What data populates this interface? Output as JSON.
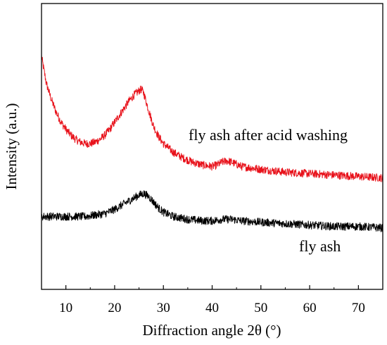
{
  "chart_data": {
    "type": "line",
    "title": "",
    "xlabel": "Diffraction angle 2θ (°)",
    "ylabel": "Intensity (a.u.)",
    "xlim": [
      5,
      75
    ],
    "x_ticks": [
      10,
      20,
      30,
      40,
      50,
      60,
      70
    ],
    "y_ticks_shown": false,
    "grid": false,
    "legend": "none",
    "annotations": [
      "fly ash after acid washing",
      "fly ash"
    ],
    "series": [
      {
        "name": "fly ash after acid washing",
        "color": "#e8121b",
        "points": [
          [
            5,
            0.815
          ],
          [
            6,
            0.72
          ],
          [
            7,
            0.665
          ],
          [
            8,
            0.62
          ],
          [
            9,
            0.585
          ],
          [
            10,
            0.56
          ],
          [
            11,
            0.54
          ],
          [
            12,
            0.525
          ],
          [
            13,
            0.515
          ],
          [
            14,
            0.51
          ],
          [
            15,
            0.51
          ],
          [
            16,
            0.515
          ],
          [
            17,
            0.525
          ],
          [
            18,
            0.54
          ],
          [
            19,
            0.56
          ],
          [
            20,
            0.585
          ],
          [
            21,
            0.61
          ],
          [
            22,
            0.635
          ],
          [
            23,
            0.66
          ],
          [
            24,
            0.68
          ],
          [
            25,
            0.695
          ],
          [
            25.5,
            0.7
          ],
          [
            26,
            0.685
          ],
          [
            27,
            0.625
          ],
          [
            28,
            0.57
          ],
          [
            29,
            0.535
          ],
          [
            30,
            0.51
          ],
          [
            32,
            0.48
          ],
          [
            34,
            0.46
          ],
          [
            36,
            0.445
          ],
          [
            38,
            0.435
          ],
          [
            40,
            0.43
          ],
          [
            41,
            0.435
          ],
          [
            42,
            0.445
          ],
          [
            43,
            0.45
          ],
          [
            44,
            0.445
          ],
          [
            46,
            0.43
          ],
          [
            48,
            0.425
          ],
          [
            50,
            0.42
          ],
          [
            55,
            0.41
          ],
          [
            60,
            0.405
          ],
          [
            65,
            0.4
          ],
          [
            70,
            0.395
          ],
          [
            75,
            0.39
          ]
        ]
      },
      {
        "name": "fly ash",
        "color": "#000000",
        "points": [
          [
            5,
            0.255
          ],
          [
            8,
            0.255
          ],
          [
            10,
            0.255
          ],
          [
            12,
            0.255
          ],
          [
            14,
            0.255
          ],
          [
            16,
            0.26
          ],
          [
            18,
            0.265
          ],
          [
            20,
            0.28
          ],
          [
            22,
            0.3
          ],
          [
            24,
            0.32
          ],
          [
            25,
            0.33
          ],
          [
            26,
            0.335
          ],
          [
            27,
            0.325
          ],
          [
            28,
            0.305
          ],
          [
            29,
            0.285
          ],
          [
            30,
            0.27
          ],
          [
            32,
            0.255
          ],
          [
            35,
            0.245
          ],
          [
            38,
            0.24
          ],
          [
            40,
            0.24
          ],
          [
            42,
            0.245
          ],
          [
            44,
            0.245
          ],
          [
            46,
            0.24
          ],
          [
            50,
            0.235
          ],
          [
            55,
            0.23
          ],
          [
            60,
            0.225
          ],
          [
            65,
            0.22
          ],
          [
            70,
            0.22
          ],
          [
            75,
            0.215
          ]
        ]
      }
    ]
  }
}
